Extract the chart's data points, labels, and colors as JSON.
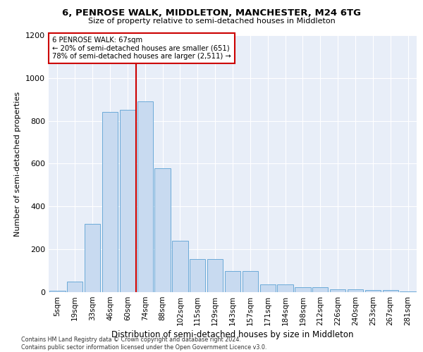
{
  "title1": "6, PENROSE WALK, MIDDLETON, MANCHESTER, M24 6TG",
  "title2": "Size of property relative to semi-detached houses in Middleton",
  "xlabel": "Distribution of semi-detached houses by size in Middleton",
  "ylabel": "Number of semi-detached properties",
  "footnote": "Contains HM Land Registry data © Crown copyright and database right 2024.\nContains public sector information licensed under the Open Government Licence v3.0.",
  "bin_labels": [
    "5sqm",
    "19sqm",
    "33sqm",
    "46sqm",
    "60sqm",
    "74sqm",
    "88sqm",
    "102sqm",
    "115sqm",
    "129sqm",
    "143sqm",
    "157sqm",
    "171sqm",
    "184sqm",
    "198sqm",
    "212sqm",
    "226sqm",
    "240sqm",
    "253sqm",
    "267sqm",
    "281sqm"
  ],
  "bar_heights": [
    8,
    48,
    320,
    840,
    850,
    890,
    580,
    240,
    155,
    155,
    100,
    100,
    35,
    35,
    22,
    22,
    12,
    12,
    10,
    10,
    2
  ],
  "bar_color": "#c8daf0",
  "bar_edge_color": "#6baad8",
  "annotation_box_text": "6 PENROSE WALK: 67sqm\n← 20% of semi-detached houses are smaller (651)\n78% of semi-detached houses are larger (2,511) →",
  "vline_color": "#cc0000",
  "vline_x": 4.5,
  "ylim": [
    0,
    1200
  ],
  "yticks": [
    0,
    200,
    400,
    600,
    800,
    1000,
    1200
  ],
  "background_color": "#ffffff",
  "plot_bg_color": "#e8eef8"
}
